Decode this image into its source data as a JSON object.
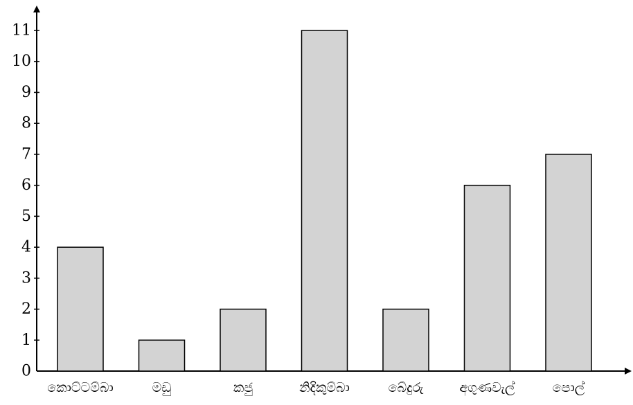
{
  "chart_data": {
    "type": "bar",
    "categories": [
      "කොට්ටම්බා",
      "මඩු",
      "කජු",
      "නිදිකුම්බා",
      "බේදුරු",
      "අගුණවැල්",
      "පොල්"
    ],
    "values": [
      4,
      1,
      2,
      11,
      2,
      6,
      7
    ],
    "title": "",
    "xlabel": "",
    "ylabel": "",
    "ylim": [
      0,
      11
    ],
    "yticks": [
      0,
      1,
      2,
      3,
      4,
      5,
      6,
      7,
      8,
      9,
      10,
      11
    ],
    "grid": false,
    "legend": "none",
    "colors": {
      "bar_fill": "#d3d3d3",
      "bar_stroke": "#000000",
      "axis": "#000000"
    }
  }
}
